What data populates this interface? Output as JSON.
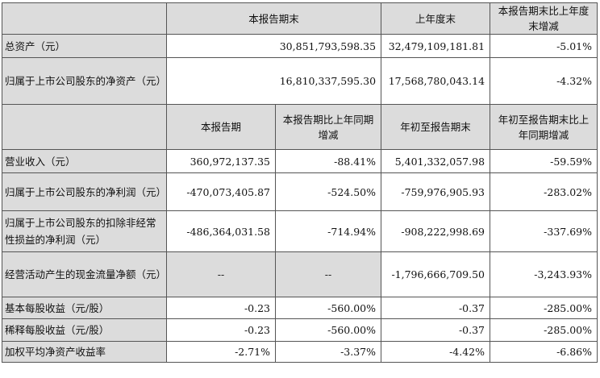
{
  "top_header": [
    "本报告期末",
    "上年度末",
    "本报告期末比上年度末增减"
  ],
  "top_rows": [
    {
      "label": "总资产（元）",
      "values": [
        "30,851,793,598.35",
        "32,479,109,181.81",
        "-5.01%"
      ]
    },
    {
      "label": "归属于上市公司股东的净资产（元）",
      "values": [
        "16,810,337,595.30",
        "17,568,780,043.14",
        "-4.32%"
      ]
    }
  ],
  "bottom_header": [
    "本报告期",
    "本报告期比上年同期增减",
    "年初至报告期末",
    "年初至报告期末比上年同期增减"
  ],
  "bottom_rows": [
    {
      "label": "营业收入（元）",
      "values": [
        "360,972,137.35",
        "-88.41%",
        "5,401,332,057.98",
        "-59.59%"
      ]
    },
    {
      "label": "归属于上市公司股东的净利润（元）",
      "values": [
        "-470,073,405.87",
        "-524.50%",
        "-759,976,905.93",
        "-283.02%"
      ]
    },
    {
      "label": "归属于上市公司股东的扣除非经常性损益的净利润（元）",
      "values": [
        "-486,364,031.58",
        "-714.94%",
        "-908,222,998.69",
        "-337.69%"
      ]
    },
    {
      "label": "经营活动产生的现金流量净额（元）",
      "values": [
        "--",
        "--",
        "-1,796,666,709.50",
        "-3,243.93%"
      ]
    },
    {
      "label": "基本每股收益（元/股）",
      "values": [
        "-0.23",
        "-560.00%",
        "-0.37",
        "-285.00%"
      ]
    },
    {
      "label": "稀释每股收益（元/股）",
      "values": [
        "-0.23",
        "-560.00%",
        "-0.37",
        "-285.00%"
      ]
    },
    {
      "label": "加权平均净资产收益率",
      "values": [
        "-2.71%",
        "-3.37%",
        "-4.42%",
        "-6.86%"
      ]
    }
  ]
}
